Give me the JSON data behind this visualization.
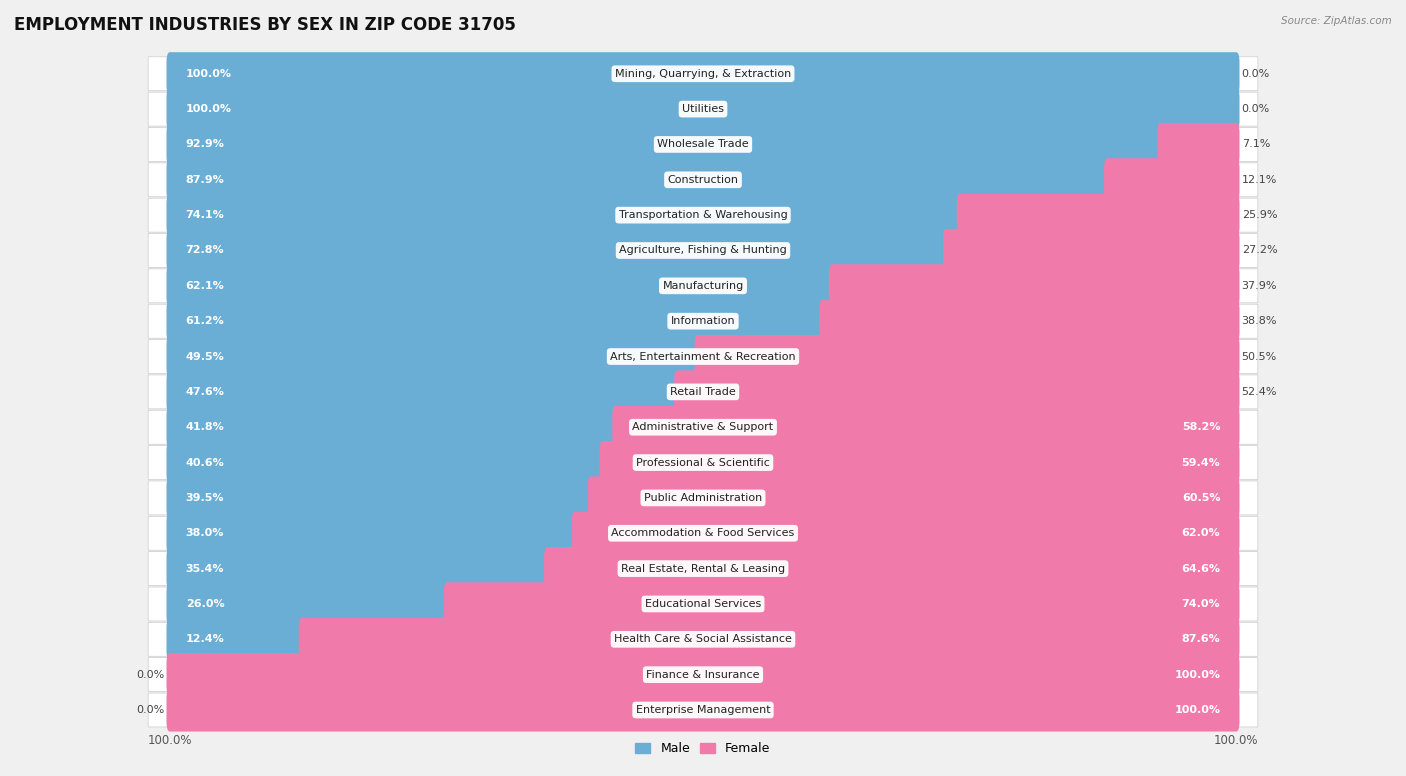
{
  "title": "EMPLOYMENT INDUSTRIES BY SEX IN ZIP CODE 31705",
  "source": "Source: ZipAtlas.com",
  "categories": [
    "Mining, Quarrying, & Extraction",
    "Utilities",
    "Wholesale Trade",
    "Construction",
    "Transportation & Warehousing",
    "Agriculture, Fishing & Hunting",
    "Manufacturing",
    "Information",
    "Arts, Entertainment & Recreation",
    "Retail Trade",
    "Administrative & Support",
    "Professional & Scientific",
    "Public Administration",
    "Accommodation & Food Services",
    "Real Estate, Rental & Leasing",
    "Educational Services",
    "Health Care & Social Assistance",
    "Finance & Insurance",
    "Enterprise Management"
  ],
  "male_pct": [
    100.0,
    100.0,
    92.9,
    87.9,
    74.1,
    72.8,
    62.1,
    61.2,
    49.5,
    47.6,
    41.8,
    40.6,
    39.5,
    38.0,
    35.4,
    26.0,
    12.4,
    0.0,
    0.0
  ],
  "female_pct": [
    0.0,
    0.0,
    7.1,
    12.1,
    25.9,
    27.2,
    37.9,
    38.8,
    50.5,
    52.4,
    58.2,
    59.4,
    60.5,
    62.0,
    64.6,
    74.0,
    87.6,
    100.0,
    100.0
  ],
  "male_color": "#6aaed6",
  "female_color": "#f07bab",
  "bg_color": "#f0f0f0",
  "row_bg_color": "#ffffff",
  "bar_bg_color": "#e0e0e0",
  "label_bg_color": "#ffffff",
  "title_fontsize": 12,
  "label_fontsize": 8,
  "pct_fontsize": 8,
  "bar_height": 0.62,
  "figsize": [
    14.06,
    7.76
  ]
}
